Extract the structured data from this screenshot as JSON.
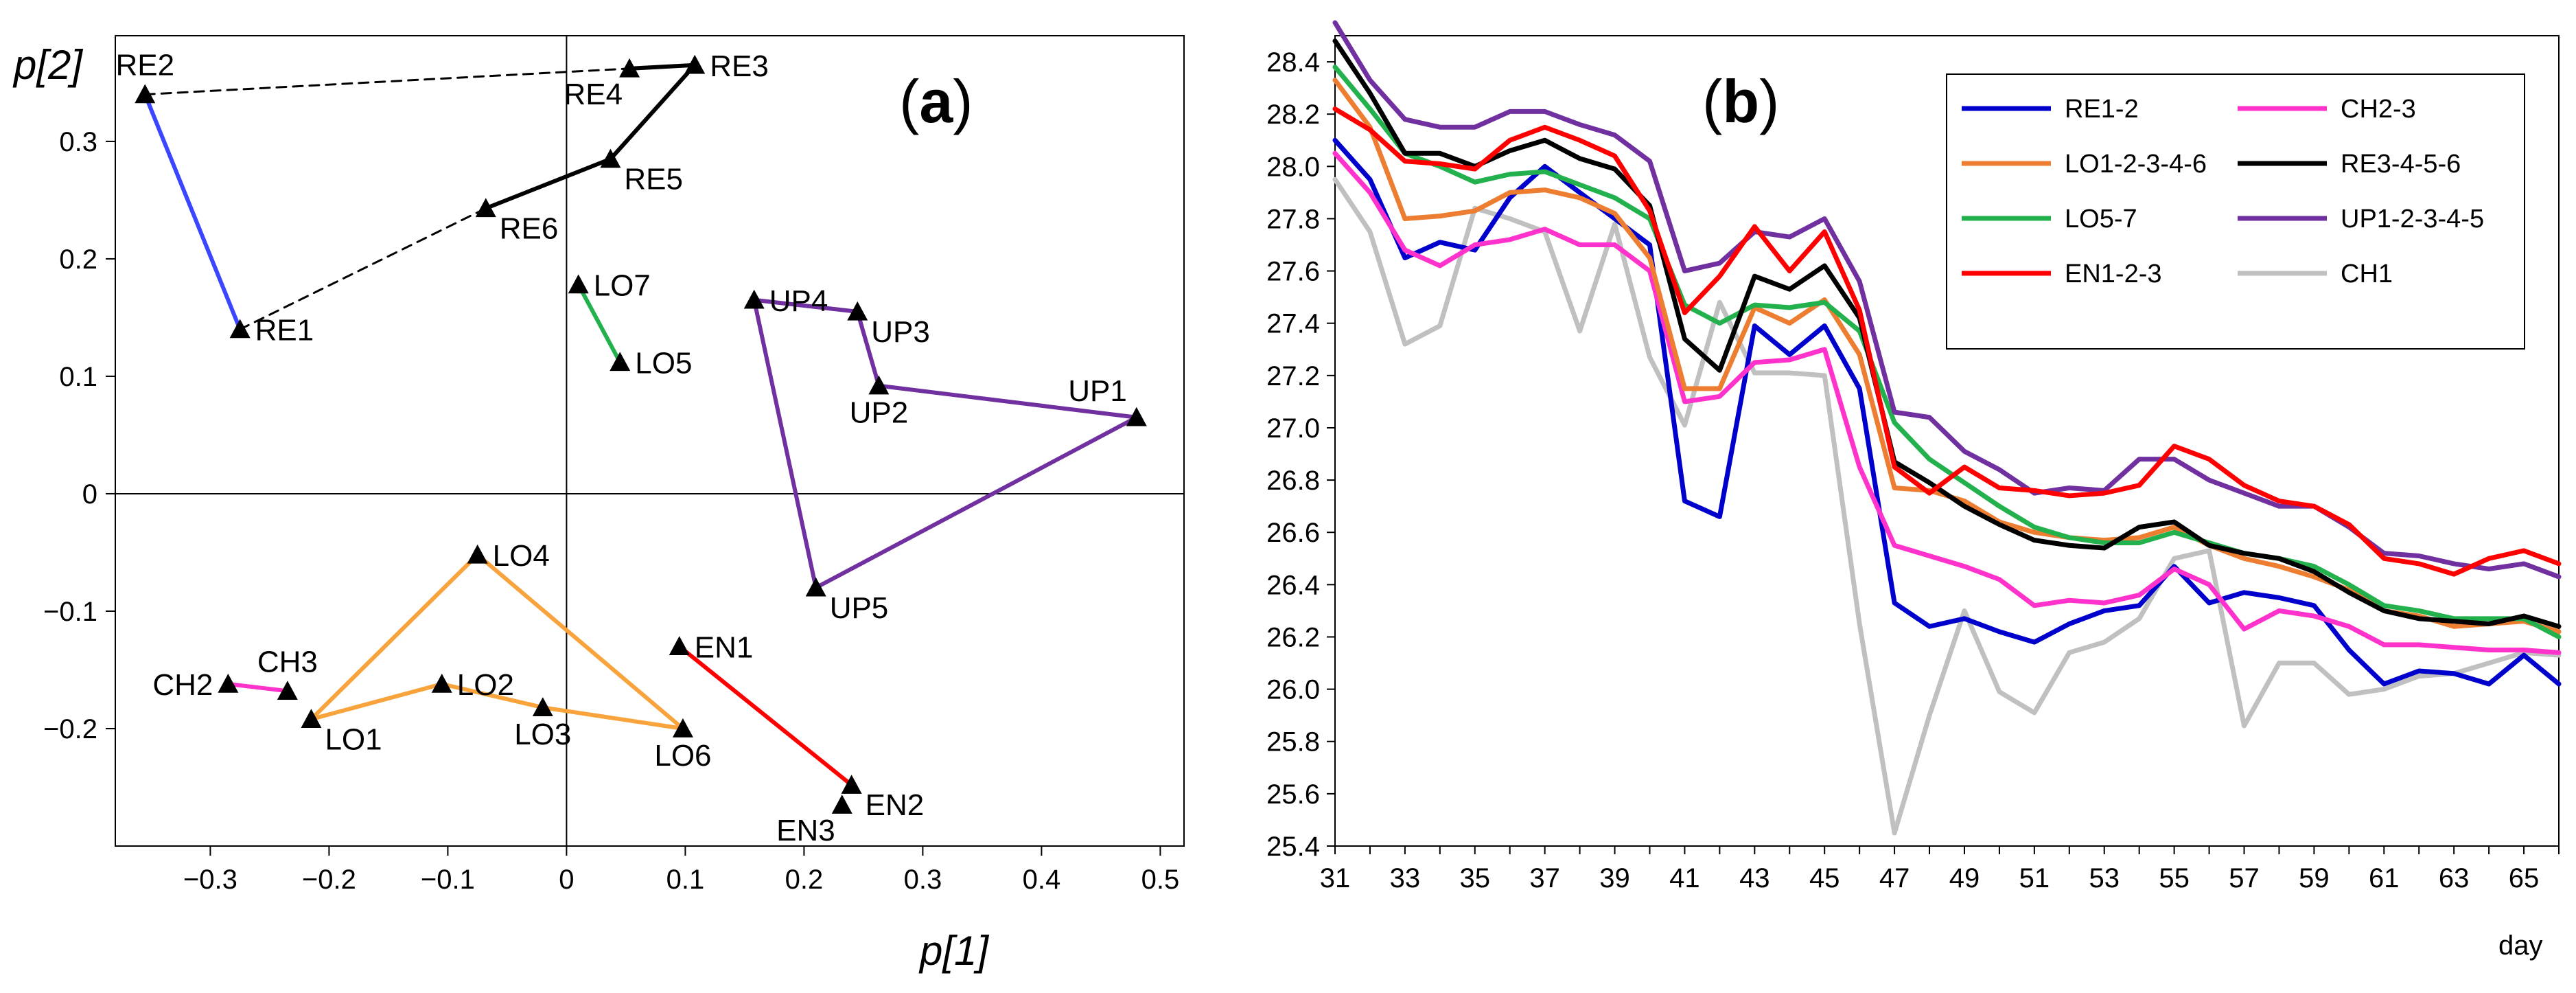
{
  "chart_data": [
    {
      "panel": "a",
      "type": "scatter",
      "panel_label_open": "(",
      "panel_label_letter": "a",
      "panel_label_close": ")",
      "xlabel": "p[1]",
      "ylabel": "p[2]",
      "xlim": [
        -0.38,
        0.52
      ],
      "ylim": [
        -0.3,
        0.39
      ],
      "xticks": [
        -0.3,
        -0.2,
        -0.1,
        0,
        0.1,
        0.2,
        0.3,
        0.4,
        0.5
      ],
      "xtick_labels": [
        "−0.3",
        "−0.2",
        "−0.1",
        "0",
        "0.1",
        "0.2",
        "0.3",
        "0.4",
        "0.5"
      ],
      "yticks": [
        0.3,
        0.2,
        0.1,
        0,
        -0.1,
        -0.2
      ],
      "ytick_labels": [
        "0.3",
        "0.2",
        "0.1",
        "0",
        "−0.1",
        "−0.2"
      ],
      "points": [
        {
          "label": "RE2",
          "x": -0.355,
          "y": 0.34,
          "anchor": "above"
        },
        {
          "label": "RE1",
          "x": -0.275,
          "y": 0.14,
          "anchor": "right"
        },
        {
          "label": "RE3",
          "x": 0.108,
          "y": 0.365,
          "anchor": "right"
        },
        {
          "label": "RE4",
          "x": 0.053,
          "y": 0.362,
          "anchor": "below-left"
        },
        {
          "label": "RE5",
          "x": 0.037,
          "y": 0.285,
          "anchor": "right-below"
        },
        {
          "label": "RE6",
          "x": -0.068,
          "y": 0.243,
          "anchor": "right-below"
        },
        {
          "label": "LO7",
          "x": 0.01,
          "y": 0.178,
          "anchor": "right"
        },
        {
          "label": "LO5",
          "x": 0.045,
          "y": 0.112,
          "anchor": "right"
        },
        {
          "label": "UP4",
          "x": 0.158,
          "y": 0.165,
          "anchor": "right"
        },
        {
          "label": "UP3",
          "x": 0.245,
          "y": 0.155,
          "anchor": "right-below"
        },
        {
          "label": "UP2",
          "x": 0.263,
          "y": 0.092,
          "anchor": "below"
        },
        {
          "label": "UP1",
          "x": 0.48,
          "y": 0.065,
          "anchor": "above-left"
        },
        {
          "label": "UP5",
          "x": 0.21,
          "y": -0.08,
          "anchor": "right-below"
        },
        {
          "label": "LO4",
          "x": -0.075,
          "y": -0.052,
          "anchor": "right"
        },
        {
          "label": "LO2",
          "x": -0.105,
          "y": -0.162,
          "anchor": "right"
        },
        {
          "label": "LO3",
          "x": -0.02,
          "y": -0.182,
          "anchor": "below"
        },
        {
          "label": "LO6",
          "x": 0.098,
          "y": -0.2,
          "anchor": "below"
        },
        {
          "label": "LO1",
          "x": -0.215,
          "y": -0.192,
          "anchor": "right-below"
        },
        {
          "label": "CH2",
          "x": -0.285,
          "y": -0.162,
          "anchor": "left"
        },
        {
          "label": "CH3",
          "x": -0.235,
          "y": -0.168,
          "anchor": "above"
        },
        {
          "label": "EN1",
          "x": 0.095,
          "y": -0.13,
          "anchor": "right"
        },
        {
          "label": "EN2",
          "x": 0.24,
          "y": -0.248,
          "anchor": "right-below"
        },
        {
          "label": "EN3",
          "x": 0.232,
          "y": -0.265,
          "anchor": "below-left"
        }
      ],
      "segments": [
        {
          "from": "RE2",
          "to": "RE1",
          "color": "#3a46ff",
          "style": "solid"
        },
        {
          "from": "RE2",
          "to": "RE3",
          "color": "#000000",
          "style": "dashed"
        },
        {
          "from": "RE1",
          "to": "RE6",
          "color": "#000000",
          "style": "dashed"
        },
        {
          "from": "RE6",
          "to": "RE5",
          "color": "#000000",
          "style": "solid"
        },
        {
          "from": "RE5",
          "to": "RE3",
          "color": "#000000",
          "style": "solid"
        },
        {
          "from": "RE4",
          "to": "RE3",
          "color": "#000000",
          "style": "solid"
        },
        {
          "from": "LO7",
          "to": "LO5",
          "color": "#22b14c",
          "style": "solid"
        },
        {
          "from": "UP4",
          "to": "UP3",
          "color": "#7030a0",
          "style": "solid"
        },
        {
          "from": "UP3",
          "to": "UP2",
          "color": "#7030a0",
          "style": "solid"
        },
        {
          "from": "UP2",
          "to": "UP1",
          "color": "#7030a0",
          "style": "solid"
        },
        {
          "from": "UP1",
          "to": "UP5",
          "color": "#7030a0",
          "style": "solid"
        },
        {
          "from": "UP5",
          "to": "UP4",
          "color": "#7030a0",
          "style": "solid"
        },
        {
          "from": "LO1",
          "to": "LO4",
          "color": "#f8a33c",
          "style": "solid"
        },
        {
          "from": "LO4",
          "to": "LO6",
          "color": "#f8a33c",
          "style": "solid"
        },
        {
          "from": "LO1",
          "to": "LO2",
          "color": "#f8a33c",
          "style": "solid"
        },
        {
          "from": "LO2",
          "to": "LO3",
          "color": "#f8a33c",
          "style": "solid"
        },
        {
          "from": "LO3",
          "to": "LO6",
          "color": "#f8a33c",
          "style": "solid"
        },
        {
          "from": "CH2",
          "to": "CH3",
          "color": "#ff33cc",
          "style": "solid"
        },
        {
          "from": "EN1",
          "to": "EN2",
          "color": "#ff0000",
          "style": "solid"
        }
      ]
    },
    {
      "panel": "b",
      "type": "line",
      "panel_label_open": "(",
      "panel_label_letter": "b",
      "panel_label_close": ")",
      "xlabel": "day",
      "ylabel": "",
      "xlim": [
        31,
        66
      ],
      "ylim": [
        25.4,
        28.5
      ],
      "xticks": [
        31,
        33,
        35,
        37,
        39,
        41,
        43,
        45,
        47,
        49,
        51,
        53,
        55,
        57,
        59,
        61,
        63,
        65
      ],
      "xtick_labels": [
        "31",
        "33",
        "35",
        "37",
        "39",
        "41",
        "43",
        "45",
        "47",
        "49",
        "51",
        "53",
        "55",
        "57",
        "59",
        "61",
        "63",
        "65"
      ],
      "yticks": [
        25.4,
        25.6,
        25.8,
        26.0,
        26.2,
        26.4,
        26.6,
        26.8,
        27.0,
        27.2,
        27.4,
        27.6,
        27.8,
        28.0,
        28.2,
        28.4
      ],
      "ytick_labels": [
        "25.4",
        "25.6",
        "25.8",
        "26.0",
        "26.2",
        "26.4",
        "26.6",
        "26.8",
        "27.0",
        "27.2",
        "27.4",
        "27.6",
        "27.8",
        "28.0",
        "28.2",
        "28.4"
      ],
      "x": [
        31,
        32,
        33,
        34,
        35,
        36,
        37,
        38,
        39,
        40,
        41,
        42,
        43,
        44,
        45,
        46,
        47,
        48,
        49,
        50,
        51,
        52,
        53,
        54,
        55,
        56,
        57,
        58,
        59,
        60,
        61,
        62,
        63,
        64,
        65,
        66
      ],
      "legend_order": [
        "RE1-2",
        "CH2-3",
        "LO1-2-3-4-6",
        "RE3-4-5-6",
        "LO5-7",
        "UP1-2-3-4-5",
        "EN1-2-3",
        "CH1"
      ],
      "series": [
        {
          "name": "CH1",
          "color": "#c0c0c0",
          "values": [
            27.95,
            27.75,
            27.32,
            27.39,
            27.84,
            27.8,
            27.75,
            27.37,
            27.78,
            27.27,
            27.01,
            27.48,
            27.21,
            27.21,
            27.2,
            26.25,
            25.45,
            25.9,
            26.3,
            25.99,
            25.91,
            26.14,
            26.18,
            26.27,
            26.5,
            26.53,
            25.86,
            26.1,
            26.1,
            25.98,
            26.0,
            26.05,
            26.06,
            26.1,
            26.14,
            26.13
          ]
        },
        {
          "name": "RE1-2",
          "color": "#0000cc",
          "values": [
            28.1,
            27.95,
            27.65,
            27.71,
            27.68,
            27.88,
            28.0,
            27.9,
            27.8,
            27.7,
            26.72,
            26.66,
            27.39,
            27.28,
            27.39,
            27.15,
            26.33,
            26.24,
            26.27,
            26.22,
            26.18,
            26.25,
            26.3,
            26.32,
            26.47,
            26.33,
            26.37,
            26.35,
            26.32,
            26.15,
            26.02,
            26.07,
            26.06,
            26.02,
            26.13,
            26.02
          ]
        },
        {
          "name": "CH2-3",
          "color": "#ff33cc",
          "values": [
            28.05,
            27.9,
            27.68,
            27.62,
            27.7,
            27.72,
            27.76,
            27.7,
            27.7,
            27.6,
            27.1,
            27.12,
            27.25,
            27.26,
            27.3,
            26.85,
            26.55,
            26.51,
            26.47,
            26.42,
            26.32,
            26.34,
            26.33,
            26.36,
            26.46,
            26.4,
            26.23,
            26.3,
            26.28,
            26.24,
            26.17,
            26.17,
            26.16,
            26.15,
            26.15,
            26.14
          ]
        },
        {
          "name": "LO1-2-3-4-6",
          "color": "#ed7d31",
          "values": [
            28.33,
            28.15,
            27.8,
            27.81,
            27.83,
            27.9,
            27.91,
            27.88,
            27.82,
            27.65,
            27.15,
            27.15,
            27.46,
            27.4,
            27.49,
            27.28,
            26.77,
            26.76,
            26.72,
            26.64,
            26.6,
            26.58,
            26.57,
            26.58,
            26.62,
            26.55,
            26.5,
            26.47,
            26.43,
            26.38,
            26.3,
            26.28,
            26.24,
            26.25,
            26.26,
            26.22
          ]
        },
        {
          "name": "LO5-7",
          "color": "#22b14c",
          "values": [
            28.38,
            28.22,
            28.05,
            28.0,
            27.94,
            27.97,
            27.98,
            27.93,
            27.88,
            27.8,
            27.47,
            27.4,
            27.47,
            27.46,
            27.48,
            27.37,
            27.02,
            26.88,
            26.79,
            26.7,
            26.62,
            26.58,
            26.56,
            26.56,
            26.6,
            26.56,
            26.52,
            26.5,
            26.47,
            26.4,
            26.32,
            26.3,
            26.27,
            26.27,
            26.27,
            26.2
          ]
        },
        {
          "name": "RE3-4-5-6",
          "color": "#000000",
          "values": [
            28.48,
            28.28,
            28.05,
            28.05,
            28.0,
            28.06,
            28.1,
            28.03,
            27.99,
            27.85,
            27.34,
            27.22,
            27.58,
            27.53,
            27.62,
            27.42,
            26.87,
            26.79,
            26.7,
            26.63,
            26.57,
            26.55,
            26.54,
            26.62,
            26.64,
            26.55,
            26.52,
            26.5,
            26.45,
            26.37,
            26.3,
            26.27,
            26.26,
            26.25,
            26.28,
            26.24
          ]
        },
        {
          "name": "UP1-2-3-4-5",
          "color": "#7030a0",
          "values": [
            28.55,
            28.33,
            28.18,
            28.15,
            28.15,
            28.21,
            28.21,
            28.16,
            28.12,
            28.02,
            27.6,
            27.63,
            27.75,
            27.73,
            27.8,
            27.56,
            27.06,
            27.04,
            26.91,
            26.84,
            26.75,
            26.77,
            26.76,
            26.88,
            26.88,
            26.8,
            26.75,
            26.7,
            26.7,
            26.62,
            26.52,
            26.51,
            26.48,
            26.46,
            26.48,
            26.43
          ]
        },
        {
          "name": "EN1-2-3",
          "color": "#ff0000",
          "values": [
            28.22,
            28.14,
            28.02,
            28.01,
            27.99,
            28.1,
            28.15,
            28.1,
            28.04,
            27.83,
            27.44,
            27.58,
            27.77,
            27.6,
            27.75,
            27.45,
            26.85,
            26.75,
            26.85,
            26.77,
            26.76,
            26.74,
            26.75,
            26.78,
            26.93,
            26.88,
            26.78,
            26.72,
            26.7,
            26.63,
            26.5,
            26.48,
            26.44,
            26.5,
            26.53,
            26.48
          ]
        }
      ]
    }
  ]
}
